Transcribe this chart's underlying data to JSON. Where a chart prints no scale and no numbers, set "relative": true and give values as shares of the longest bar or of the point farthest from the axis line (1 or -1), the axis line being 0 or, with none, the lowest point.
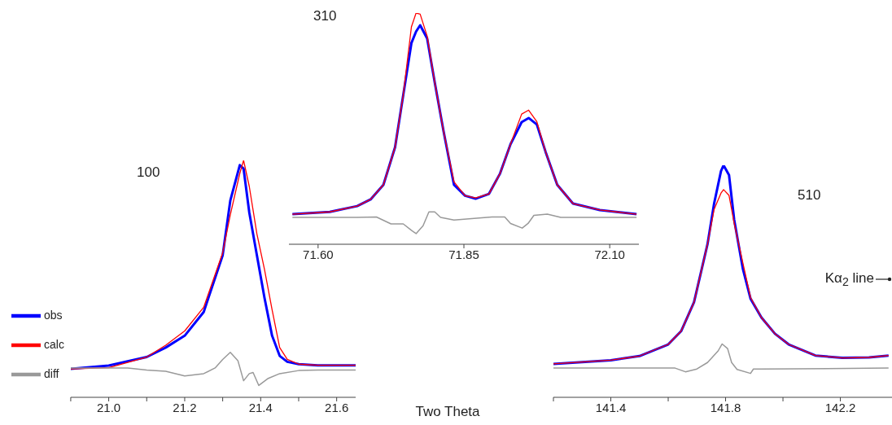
{
  "chart_data": [
    {
      "type": "line",
      "relative": true,
      "xlim": [
        20.9,
        21.65
      ],
      "xticks": [
        {
          "value": 20.9,
          "label": null
        },
        {
          "value": 21,
          "label": "21.0"
        },
        {
          "value": 21.1,
          "label": null
        },
        21.2,
        {
          "value": 21.3,
          "label": null
        },
        21.4,
        {
          "value": 21.5,
          "label": null
        },
        21.6
      ],
      "legend": "left",
      "annotations": [
        "100"
      ],
      "series": [
        {
          "name": "obs",
          "color": "#0000ff",
          "x": [
            20.9,
            21.0,
            21.1,
            21.15,
            21.2,
            21.25,
            21.3,
            21.32,
            21.345,
            21.355,
            21.37,
            21.39,
            21.41,
            21.43,
            21.45,
            21.47,
            21.5,
            21.55,
            21.6,
            21.65
          ],
          "values": [
            0.12,
            0.134,
            0.17,
            0.21,
            0.26,
            0.36,
            0.6,
            0.83,
            0.98,
            0.965,
            0.78,
            0.6,
            0.42,
            0.26,
            0.175,
            0.15,
            0.14,
            0.135,
            0.135,
            0.135
          ]
        },
        {
          "name": "calc",
          "color": "#ff0000",
          "x": [
            20.9,
            21.0,
            21.1,
            21.15,
            21.2,
            21.25,
            21.3,
            21.32,
            21.345,
            21.355,
            21.37,
            21.39,
            21.41,
            21.43,
            21.45,
            21.47,
            21.5,
            21.55,
            21.6,
            21.65
          ],
          "values": [
            0.12,
            0.125,
            0.17,
            0.22,
            0.28,
            0.38,
            0.61,
            0.77,
            0.945,
            1.0,
            0.89,
            0.69,
            0.54,
            0.37,
            0.21,
            0.16,
            0.14,
            0.135,
            0.135,
            0.135
          ]
        },
        {
          "name": "diff",
          "color": "#999999",
          "x": [
            20.9,
            21.05,
            21.1,
            21.15,
            21.2,
            21.25,
            21.28,
            21.3,
            21.32,
            21.34,
            21.355,
            21.37,
            21.38,
            21.395,
            21.42,
            21.45,
            21.5,
            21.55,
            21.65
          ],
          "values": [
            0.124,
            0.124,
            0.115,
            0.11,
            0.09,
            0.1,
            0.124,
            0.16,
            0.19,
            0.155,
            0.07,
            0.1,
            0.105,
            0.05,
            0.08,
            0.1,
            0.113,
            0.115,
            0.115
          ]
        }
      ]
    },
    {
      "type": "line",
      "relative": true,
      "xlim": [
        71.55,
        72.15
      ],
      "xticks": [
        {
          "value": 71.6,
          "label": "71.60"
        },
        71.85,
        {
          "value": 72.1,
          "label": "72.10"
        }
      ],
      "xlabel": "Two Theta",
      "annotations": [
        "310"
      ],
      "series": [
        {
          "color": "#0000ff",
          "x": [
            71.556,
            71.62,
            71.667,
            71.69,
            71.712,
            71.732,
            71.746,
            71.76,
            71.768,
            71.775,
            71.787,
            71.8,
            71.815,
            71.833,
            71.852,
            71.87,
            71.893,
            71.912,
            71.93,
            71.949,
            71.961,
            71.975,
            71.99,
            72.01,
            72.037,
            72.083,
            72.146
          ],
          "values": [
            0.13,
            0.14,
            0.165,
            0.194,
            0.257,
            0.42,
            0.645,
            0.87,
            0.92,
            0.947,
            0.89,
            0.7,
            0.49,
            0.257,
            0.21,
            0.197,
            0.218,
            0.306,
            0.433,
            0.528,
            0.546,
            0.518,
            0.4,
            0.257,
            0.176,
            0.148,
            0.13
          ]
        },
        {
          "color": "#ff0000",
          "x": [
            71.556,
            71.62,
            71.667,
            71.69,
            71.712,
            71.732,
            71.746,
            71.76,
            71.768,
            71.775,
            71.787,
            71.8,
            71.815,
            71.833,
            71.852,
            71.87,
            71.893,
            71.912,
            71.93,
            71.949,
            71.961,
            71.975,
            71.99,
            72.01,
            72.037,
            72.083,
            72.146
          ],
          "values": [
            0.13,
            0.14,
            0.165,
            0.194,
            0.257,
            0.42,
            0.645,
            0.94,
            1.0,
            0.995,
            0.9,
            0.7,
            0.49,
            0.27,
            0.21,
            0.2,
            0.218,
            0.306,
            0.433,
            0.563,
            0.58,
            0.53,
            0.4,
            0.257,
            0.176,
            0.148,
            0.13
          ]
        },
        {
          "color": "#999999",
          "x": [
            71.556,
            71.667,
            71.7,
            71.725,
            71.746,
            71.76,
            71.768,
            71.78,
            71.79,
            71.8,
            71.81,
            71.833,
            71.898,
            71.92,
            71.93,
            71.95,
            71.96,
            71.97,
            71.993,
            72.016,
            72.146
          ],
          "values": [
            0.116,
            0.116,
            0.118,
            0.088,
            0.088,
            0.06,
            0.046,
            0.08,
            0.14,
            0.14,
            0.116,
            0.105,
            0.118,
            0.118,
            0.09,
            0.07,
            0.09,
            0.125,
            0.13,
            0.116,
            0.116
          ]
        }
      ]
    },
    {
      "type": "line",
      "relative": true,
      "xlim": [
        141.2,
        142.38
      ],
      "xticks": [
        {
          "value": 141.2,
          "label": null
        },
        141.4,
        {
          "value": 141.6,
          "label": null
        },
        141.8,
        {
          "value": 142,
          "label": null
        },
        142.2
      ],
      "annotations": [
        "510",
        "Kα$_{2}$ line"
      ],
      "series": [
        {
          "color": "#0000ff",
          "x": [
            141.2,
            141.4,
            141.5,
            141.6,
            141.645,
            141.69,
            141.737,
            141.76,
            141.784,
            141.793,
            141.812,
            141.83,
            141.86,
            141.887,
            141.925,
            141.972,
            142.02,
            142.113,
            142.207,
            142.3,
            142.368
          ],
          "values": [
            0.144,
            0.16,
            0.178,
            0.228,
            0.285,
            0.41,
            0.66,
            0.835,
            0.975,
            1.0,
            0.958,
            0.765,
            0.555,
            0.425,
            0.344,
            0.274,
            0.228,
            0.18,
            0.17,
            0.172,
            0.18
          ]
        },
        {
          "color": "#ff0000",
          "x": [
            141.2,
            141.4,
            141.5,
            141.6,
            141.645,
            141.69,
            141.737,
            141.76,
            141.784,
            141.793,
            141.812,
            141.83,
            141.86,
            141.887,
            141.925,
            141.972,
            142.02,
            142.113,
            142.207,
            142.3,
            142.368
          ],
          "values": [
            0.144,
            0.16,
            0.178,
            0.228,
            0.285,
            0.41,
            0.66,
            0.81,
            0.88,
            0.895,
            0.87,
            0.75,
            0.58,
            0.43,
            0.344,
            0.274,
            0.228,
            0.18,
            0.17,
            0.172,
            0.18
          ]
        },
        {
          "color": "#999999",
          "x": [
            141.2,
            141.624,
            141.66,
            141.7,
            141.737,
            141.774,
            141.788,
            141.807,
            141.821,
            141.84,
            141.887,
            141.897,
            141.925,
            142.368
          ],
          "values": [
            0.126,
            0.126,
            0.11,
            0.122,
            0.15,
            0.2,
            0.23,
            0.21,
            0.15,
            0.12,
            0.103,
            0.122,
            0.122,
            0.126
          ]
        }
      ]
    }
  ]
}
